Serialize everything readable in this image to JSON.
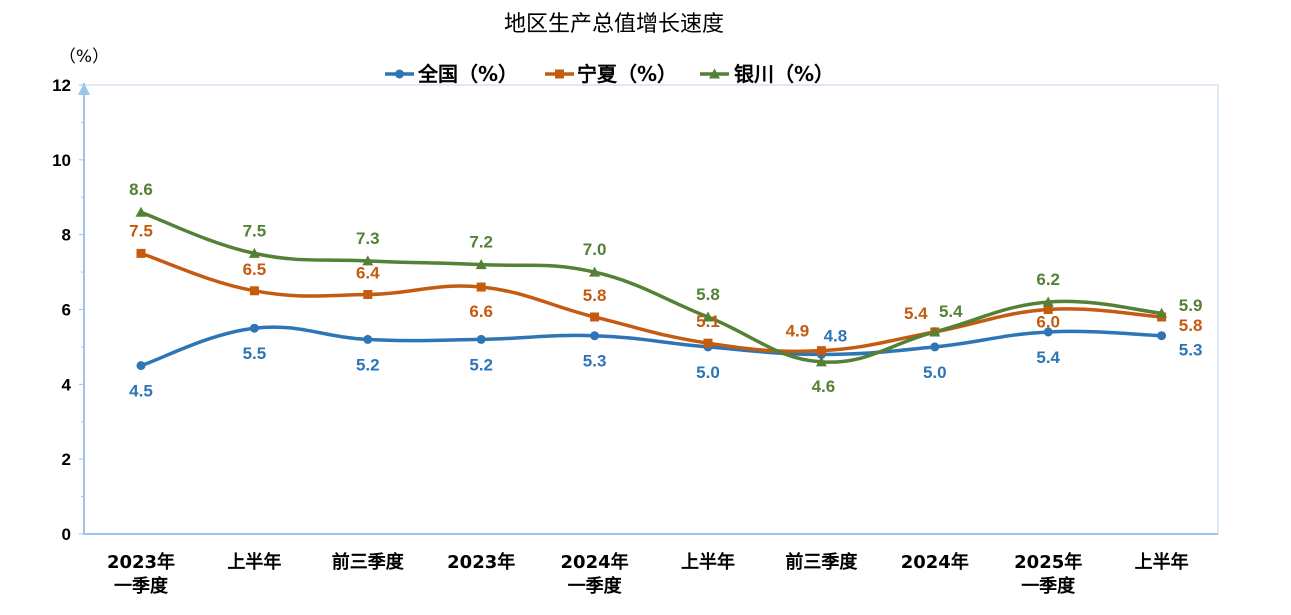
{
  "chart_data": {
    "type": "line",
    "title": "地区生产总值增长速度",
    "y_unit": "（%）",
    "ylim": [
      0,
      12
    ],
    "yticks": [
      0,
      2,
      4,
      6,
      8,
      10,
      12
    ],
    "grid": false,
    "legend_position": "top",
    "categories": [
      [
        "2023年",
        "一季度"
      ],
      [
        "上半年"
      ],
      [
        "前三季度"
      ],
      [
        "2023年"
      ],
      [
        "2024年",
        "一季度"
      ],
      [
        "上半年"
      ],
      [
        "前三季度"
      ],
      [
        "2024年"
      ],
      [
        "2025年",
        "一季度"
      ],
      [
        "上半年"
      ]
    ],
    "series": [
      {
        "name": "全国（%）",
        "color": "#2E75B6",
        "marker": "circle",
        "values": [
          4.5,
          5.5,
          5.2,
          5.2,
          5.3,
          5.0,
          4.8,
          5.0,
          5.4,
          5.3
        ],
        "labels": [
          "4.5",
          "5.5",
          "5.2",
          "5.2",
          "5.3",
          "5.0",
          "4.8",
          "5.0",
          "5.4",
          "5.3"
        ]
      },
      {
        "name": "宁夏（%）",
        "color": "#C55A11",
        "marker": "square",
        "values": [
          7.5,
          6.5,
          6.4,
          6.6,
          5.8,
          5.1,
          4.9,
          5.4,
          6.0,
          5.8
        ],
        "labels": [
          "7.5",
          "6.5",
          "6.4",
          "6.6",
          "5.8",
          "5.1",
          "4.9",
          "5.4",
          "6.0",
          "5.8"
        ]
      },
      {
        "name": "银川（%）",
        "color": "#538135",
        "marker": "triangle",
        "values": [
          8.6,
          7.5,
          7.3,
          7.2,
          7.0,
          5.8,
          4.6,
          5.4,
          6.2,
          5.9
        ],
        "labels": [
          "8.6",
          "7.5",
          "7.3",
          "7.2",
          "7.0",
          "5.8",
          "4.6",
          "5.4",
          "6.2",
          "5.9"
        ]
      }
    ]
  }
}
